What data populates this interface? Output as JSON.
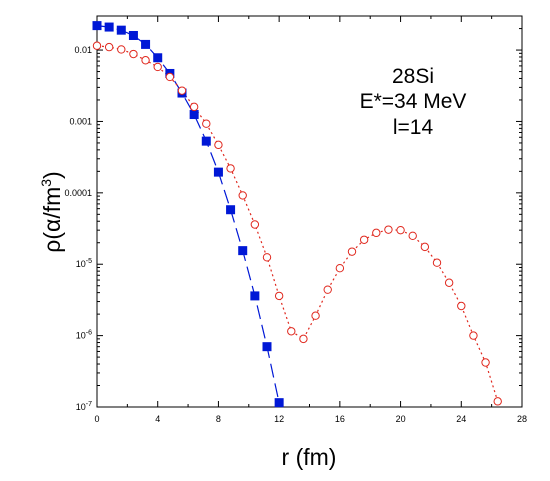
{
  "chart_data": {
    "type": "scatter",
    "xlabel": "r (fm)",
    "ylabel": "ρ(α/fm3)",
    "xlim": [
      0,
      28
    ],
    "ylim": [
      1e-07,
      0.03
    ],
    "yscale": "log",
    "grid": false,
    "x_ticks": [
      0,
      4,
      8,
      12,
      16,
      20,
      24,
      28
    ],
    "y_ticks": [
      {
        "value": 0.01,
        "label": "0.01"
      },
      {
        "value": 0.001,
        "label": "0.001"
      },
      {
        "value": 0.0001,
        "label": "0.0001"
      },
      {
        "value": 1e-05,
        "label": "10-5"
      },
      {
        "value": 1e-06,
        "label": "10-6"
      },
      {
        "value": 1e-07,
        "label": "10-7"
      }
    ],
    "annotations": [
      "28Si",
      "E*=34 MeV",
      "l=14"
    ],
    "series": [
      {
        "marker": "filled-square",
        "color": "#0018d6",
        "line_style": "long-dash",
        "points": [
          [
            0.0,
            0.022
          ],
          [
            0.8,
            0.021
          ],
          [
            1.6,
            0.019
          ],
          [
            2.4,
            0.016
          ],
          [
            3.2,
            0.012
          ],
          [
            4.0,
            0.0078
          ],
          [
            4.8,
            0.0047
          ],
          [
            5.6,
            0.0025
          ],
          [
            6.4,
            0.00125
          ],
          [
            7.2,
            0.00053
          ],
          [
            8.0,
            0.000195
          ],
          [
            8.8,
            5.8e-05
          ],
          [
            9.6,
            1.55e-05
          ],
          [
            10.4,
            3.6e-06
          ],
          [
            11.2,
            7e-07
          ],
          [
            12.0,
            1.15e-07
          ]
        ]
      },
      {
        "marker": "open-circle",
        "color": "#e0281e",
        "line_style": "dotted",
        "points": [
          [
            0.0,
            0.0115
          ],
          [
            0.8,
            0.011
          ],
          [
            1.6,
            0.0102
          ],
          [
            2.4,
            0.0088
          ],
          [
            3.2,
            0.0072
          ],
          [
            4.0,
            0.0058
          ],
          [
            4.8,
            0.0042
          ],
          [
            5.6,
            0.0027
          ],
          [
            6.4,
            0.0016
          ],
          [
            7.2,
            0.00093
          ],
          [
            8.0,
            0.00047
          ],
          [
            8.8,
            0.00022
          ],
          [
            9.6,
            9.2e-05
          ],
          [
            10.4,
            3.6e-05
          ],
          [
            11.2,
            1.25e-05
          ],
          [
            12.0,
            3.6e-06
          ],
          [
            12.8,
            1.15e-06
          ],
          [
            13.6,
            9e-07
          ],
          [
            14.4,
            1.9e-06
          ],
          [
            15.2,
            4.4e-06
          ],
          [
            16.0,
            8.8e-06
          ],
          [
            16.8,
            1.5e-05
          ],
          [
            17.6,
            2.2e-05
          ],
          [
            18.4,
            2.75e-05
          ],
          [
            19.2,
            3.05e-05
          ],
          [
            20.0,
            3e-05
          ],
          [
            20.8,
            2.5e-05
          ],
          [
            21.6,
            1.75e-05
          ],
          [
            22.4,
            1.05e-05
          ],
          [
            23.2,
            5.5e-06
          ],
          [
            24.0,
            2.6e-06
          ],
          [
            24.8,
            1e-06
          ],
          [
            25.6,
            4.2e-07
          ],
          [
            26.4,
            1.2e-07
          ]
        ]
      }
    ]
  }
}
